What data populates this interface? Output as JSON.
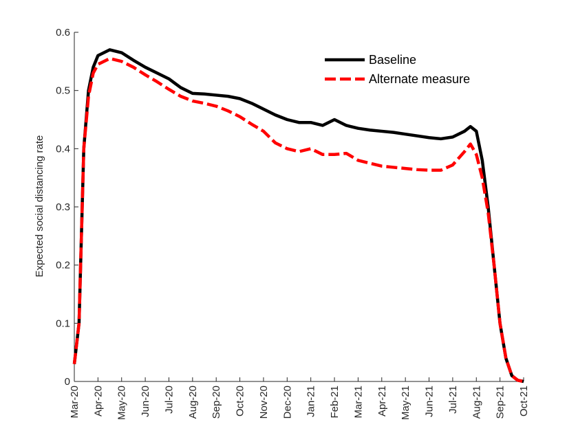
{
  "chart_data": {
    "type": "line",
    "ylabel": "Expected social distancing rate",
    "x": [
      0,
      0.2,
      0.4,
      0.6,
      0.8,
      1,
      1.5,
      2,
      2.5,
      3,
      3.5,
      4,
      4.5,
      5,
      5.5,
      6,
      6.5,
      7,
      7.5,
      8,
      8.5,
      9,
      9.5,
      10,
      10.5,
      11,
      11.5,
      12,
      12.5,
      13,
      13.5,
      14,
      14.5,
      15,
      15.5,
      16,
      16.5,
      16.75,
      17,
      17.25,
      17.5,
      17.75,
      18,
      18.25,
      18.5,
      18.75,
      19
    ],
    "series": [
      {
        "name": "Baseline",
        "color": "#000000",
        "dash": "solid",
        "values": [
          0.03,
          0.1,
          0.4,
          0.5,
          0.54,
          0.56,
          0.57,
          0.565,
          0.552,
          0.54,
          0.53,
          0.52,
          0.505,
          0.495,
          0.494,
          0.492,
          0.49,
          0.486,
          0.478,
          0.468,
          0.458,
          0.45,
          0.445,
          0.445,
          0.44,
          0.45,
          0.44,
          0.435,
          0.432,
          0.43,
          0.428,
          0.425,
          0.422,
          0.419,
          0.417,
          0.42,
          0.43,
          0.438,
          0.43,
          0.38,
          0.3,
          0.2,
          0.1,
          0.04,
          0.01,
          0.002,
          0
        ]
      },
      {
        "name": "Alternate measure",
        "color": "#ff0000",
        "dash": "dashed",
        "values": [
          0.03,
          0.1,
          0.4,
          0.49,
          0.53,
          0.545,
          0.555,
          0.55,
          0.54,
          0.527,
          0.515,
          0.502,
          0.49,
          0.482,
          0.478,
          0.473,
          0.465,
          0.455,
          0.442,
          0.43,
          0.41,
          0.4,
          0.395,
          0.4,
          0.39,
          0.39,
          0.392,
          0.38,
          0.375,
          0.37,
          0.368,
          0.366,
          0.364,
          0.363,
          0.363,
          0.372,
          0.395,
          0.408,
          0.39,
          0.35,
          0.29,
          0.2,
          0.1,
          0.04,
          0.01,
          0.002,
          0
        ]
      }
    ],
    "xlim": [
      0,
      19
    ],
    "xticks": [
      {
        "value": 0,
        "label": "Mar-20"
      },
      {
        "value": 1,
        "label": "Apr-20"
      },
      {
        "value": 2,
        "label": "May-20"
      },
      {
        "value": 3,
        "label": "Jun-20"
      },
      {
        "value": 4,
        "label": "Jul-20"
      },
      {
        "value": 5,
        "label": "Aug-20"
      },
      {
        "value": 6,
        "label": "Sep-20"
      },
      {
        "value": 7,
        "label": "Oct-20"
      },
      {
        "value": 8,
        "label": "Nov-20"
      },
      {
        "value": 9,
        "label": "Dec-20"
      },
      {
        "value": 10,
        "label": "Jan-21"
      },
      {
        "value": 11,
        "label": "Feb-21"
      },
      {
        "value": 12,
        "label": "Mar-21"
      },
      {
        "value": 13,
        "label": "Apr-21"
      },
      {
        "value": 14,
        "label": "May-21"
      },
      {
        "value": 15,
        "label": "Jun-21"
      },
      {
        "value": 16,
        "label": "Jul-21"
      },
      {
        "value": 17,
        "label": "Aug-21"
      },
      {
        "value": 18,
        "label": "Sep-21"
      },
      {
        "value": 19,
        "label": "Oct-21"
      }
    ],
    "ylim": [
      0,
      0.6
    ],
    "yticks": [
      0,
      0.1,
      0.2,
      0.3,
      0.4,
      0.5,
      0.6
    ],
    "legend": "upper right"
  }
}
